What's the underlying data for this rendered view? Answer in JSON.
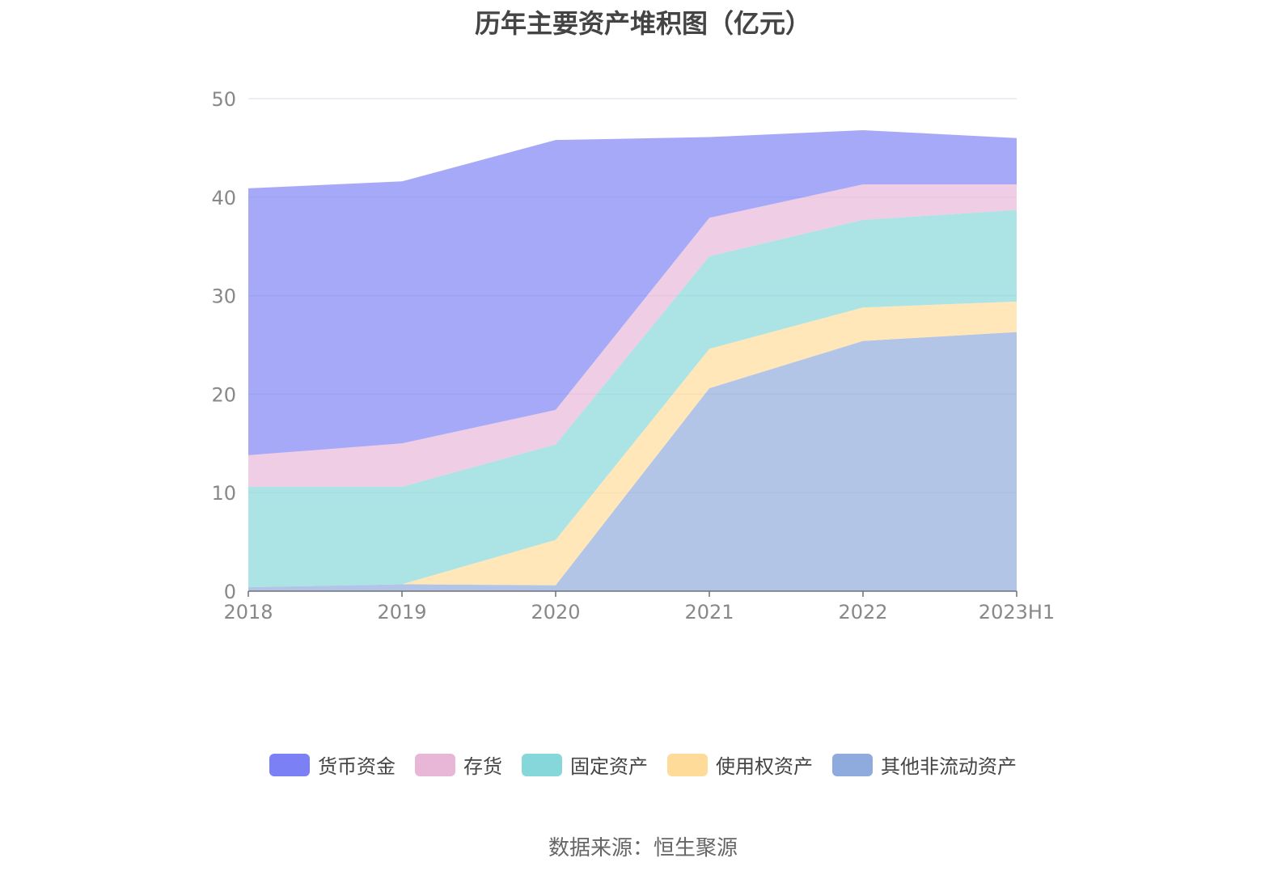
{
  "chart_data": {
    "type": "area",
    "stacked": true,
    "title": "历年主要资产堆积图（亿元）",
    "x": [
      "2018",
      "2019",
      "2020",
      "2021",
      "2022",
      "2023H1"
    ],
    "ylim": [
      0,
      50
    ],
    "yticks": [
      0,
      10,
      20,
      30,
      40,
      50
    ],
    "grid": true,
    "legend_position": "bottom",
    "series": [
      {
        "name": "其他非流动资产",
        "color": "#8FAADC",
        "values": [
          0.4,
          0.7,
          0.6,
          20.6,
          25.4,
          26.3
        ]
      },
      {
        "name": "使用权资产",
        "color": "#FFDB99",
        "values": [
          0.0,
          0.0,
          4.6,
          4.0,
          3.4,
          3.1
        ]
      },
      {
        "name": "固定资产",
        "color": "#85D7DA",
        "values": [
          10.2,
          9.9,
          9.7,
          9.4,
          8.9,
          9.3
        ]
      },
      {
        "name": "存货",
        "color": "#E8B7D8",
        "values": [
          3.2,
          4.4,
          3.5,
          3.9,
          3.6,
          2.6
        ]
      },
      {
        "name": "货币资金",
        "color": "#7B80F5",
        "values": [
          27.1,
          26.6,
          27.4,
          8.2,
          5.5,
          4.7
        ]
      }
    ],
    "legend_order": [
      "货币资金",
      "存货",
      "固定资产",
      "使用权资产",
      "其他非流动资产"
    ]
  },
  "source_text": "数据来源：恒生聚源"
}
